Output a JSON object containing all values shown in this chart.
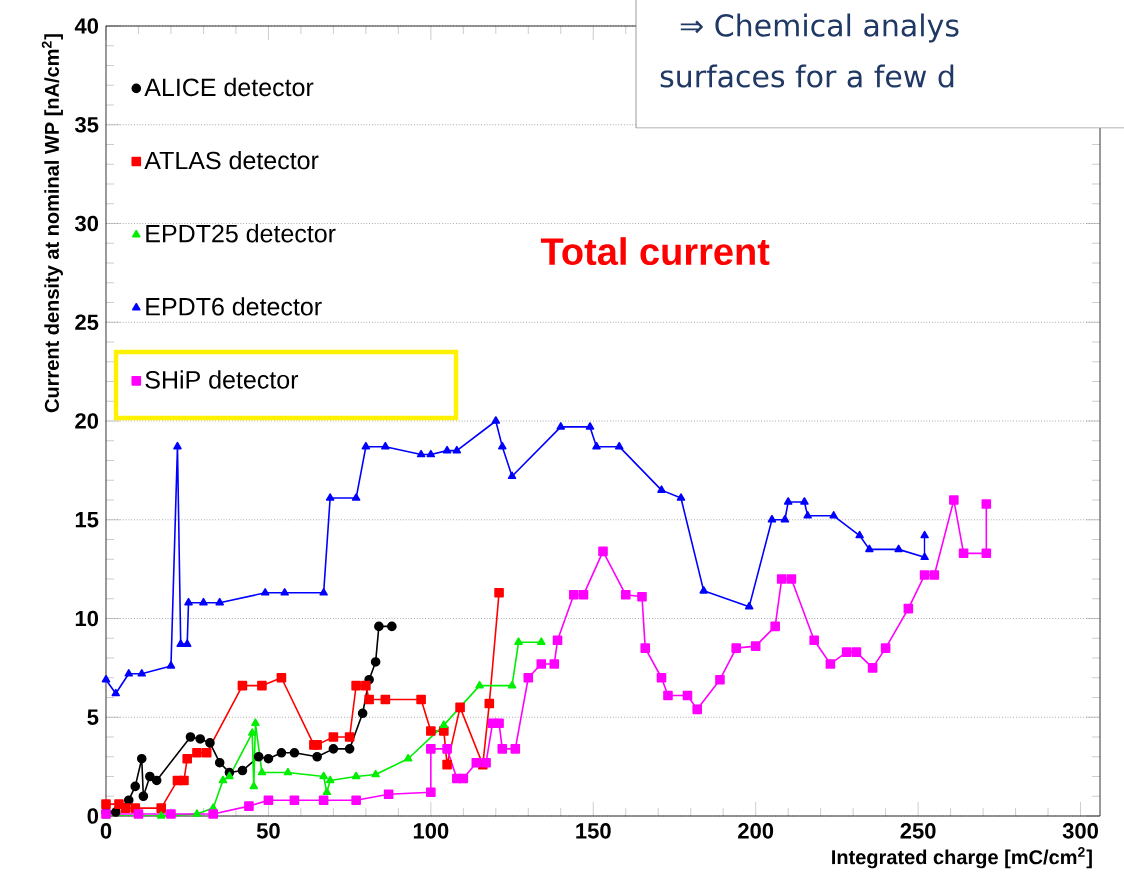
{
  "chart_data": {
    "type": "line",
    "xlabel": "Integrated charge [mC/cm$^{2}$]",
    "ylabel": "Current density at nominal WP [nA/cm$^{2}$]",
    "xlim": [
      0,
      306
    ],
    "ylim": [
      0,
      40
    ],
    "xticks": [
      0,
      50,
      100,
      150,
      200,
      250,
      300
    ],
    "yticks": [
      0,
      5,
      10,
      15,
      20,
      25,
      30,
      35,
      40
    ],
    "grid": "y",
    "legend": "top left",
    "line_style": "solid",
    "annotations": [
      "Total current",
      "⇒ Chemical analys",
      "surfaces for a few d"
    ],
    "series": [
      {
        "name": "ALICE detector",
        "color": "#000000",
        "marker": "circle",
        "x": [
          0,
          3,
          7,
          9,
          11,
          11.5,
          13.5,
          15.6,
          26,
          29,
          32,
          35,
          38,
          42,
          47,
          50,
          54,
          58,
          65,
          70,
          75,
          79,
          81,
          83,
          84,
          88
        ],
        "values": [
          0.2,
          0.2,
          0.8,
          1.5,
          2.9,
          1.0,
          2.0,
          1.8,
          4.0,
          3.9,
          3.7,
          2.7,
          2.2,
          2.3,
          3.0,
          2.9,
          3.2,
          3.2,
          3.0,
          3.4,
          3.4,
          5.2,
          6.9,
          7.8,
          9.6,
          9.6
        ]
      },
      {
        "name": "ATLAS detector",
        "color": "#ff0000",
        "marker": "square",
        "x": [
          0,
          4,
          6,
          9,
          17,
          22,
          24,
          25,
          28,
          31,
          42,
          48,
          54,
          64,
          65,
          70,
          75,
          77,
          80,
          81,
          86,
          97,
          100,
          104,
          105,
          109,
          116,
          118,
          121
        ],
        "values": [
          0.6,
          0.6,
          0.4,
          0.4,
          0.4,
          1.8,
          1.8,
          2.9,
          3.2,
          3.2,
          6.6,
          6.6,
          7.0,
          3.6,
          3.6,
          4.0,
          4.0,
          6.6,
          6.6,
          5.9,
          5.9,
          5.9,
          4.3,
          4.3,
          2.6,
          5.5,
          2.6,
          5.7,
          11.3
        ]
      },
      {
        "name": "EPDT25 detector",
        "color": "#00ee00",
        "marker": "triangle",
        "x": [
          0,
          17,
          28,
          33,
          36,
          38,
          45,
          45.5,
          46,
          48,
          56,
          67,
          68,
          69,
          77,
          83,
          93,
          104,
          115,
          125,
          127,
          134
        ],
        "values": [
          0,
          0,
          0.1,
          0.4,
          1.8,
          2.0,
          4.2,
          1.5,
          4.7,
          2.2,
          2.2,
          2.0,
          1.2,
          1.8,
          2.0,
          2.1,
          2.9,
          4.6,
          6.6,
          6.6,
          8.8,
          8.8
        ]
      },
      {
        "name": "EPDT6 detector",
        "color": "#0000ff",
        "marker": "triangle",
        "x": [
          0,
          3,
          7,
          11,
          20,
          22,
          23,
          25,
          25.4,
          30,
          35,
          49,
          55,
          67,
          69,
          77,
          80,
          86,
          97,
          100,
          105,
          108,
          120,
          122,
          125,
          140,
          149,
          151,
          158,
          171,
          177,
          184,
          198,
          205,
          209,
          210,
          215,
          216,
          224,
          232,
          235,
          244,
          252,
          252
        ],
        "values": [
          6.9,
          6.2,
          7.2,
          7.2,
          7.6,
          18.7,
          8.7,
          8.7,
          10.8,
          10.8,
          10.8,
          11.3,
          11.3,
          11.3,
          16.1,
          16.1,
          18.7,
          18.7,
          18.3,
          18.3,
          18.5,
          18.5,
          20.0,
          18.7,
          17.2,
          19.7,
          19.7,
          18.7,
          18.7,
          16.5,
          16.1,
          11.4,
          10.6,
          15.0,
          15.0,
          15.9,
          15.9,
          15.2,
          15.2,
          14.2,
          13.5,
          13.5,
          13.1,
          14.2
        ]
      },
      {
        "name": "SHiP detector",
        "color": "#ff00ff",
        "marker": "square",
        "x": [
          0,
          10,
          20,
          33,
          44,
          50,
          58,
          67,
          77,
          87,
          100,
          100,
          105,
          108,
          110,
          114,
          117,
          119,
          121,
          122,
          126,
          130,
          134,
          138,
          139,
          144,
          147,
          153,
          160,
          165,
          166,
          171,
          173,
          179,
          182,
          189,
          194,
          200,
          206,
          208,
          211,
          218,
          223,
          228,
          231,
          236,
          240,
          247,
          252,
          255,
          261,
          264,
          271,
          271
        ],
        "values": [
          0.1,
          0.1,
          0.1,
          0.1,
          0.5,
          0.8,
          0.8,
          0.8,
          0.8,
          1.1,
          1.2,
          3.4,
          3.4,
          1.9,
          1.9,
          2.7,
          2.7,
          4.7,
          4.7,
          3.4,
          3.4,
          7.0,
          7.7,
          7.7,
          8.9,
          11.2,
          11.2,
          13.4,
          11.2,
          11.1,
          8.5,
          7.0,
          6.1,
          6.1,
          5.4,
          6.9,
          8.5,
          8.6,
          9.6,
          12.0,
          12.0,
          8.9,
          7.7,
          8.3,
          8.3,
          7.5,
          8.5,
          10.5,
          12.2,
          12.2,
          16.0,
          13.3,
          13.3,
          15.8
        ]
      }
    ]
  }
}
